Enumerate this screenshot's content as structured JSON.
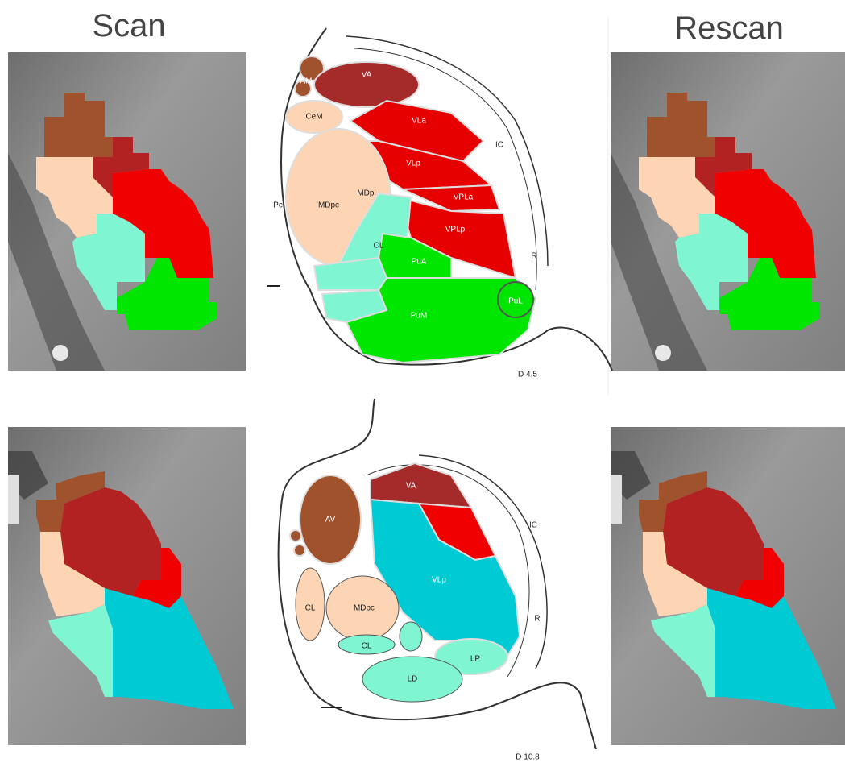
{
  "headings": {
    "scan": "Scan",
    "rescan": "Rescan"
  },
  "atlas_top": {
    "labels": [
      "AM",
      "VA",
      "CeM",
      "VLa",
      "VLp",
      "MDpc",
      "MDpl",
      "Pc",
      "VPLa",
      "VPLp",
      "CL",
      "PuA",
      "PuL",
      "PuM",
      "IC",
      "R"
    ],
    "caption": "D 4.5"
  },
  "atlas_bottom": {
    "labels": [
      "VA",
      "IC",
      "AV",
      "VLp",
      "CL",
      "MDpc",
      "CL",
      "LP",
      "LD",
      "R"
    ],
    "caption": "D 10.8"
  }
}
